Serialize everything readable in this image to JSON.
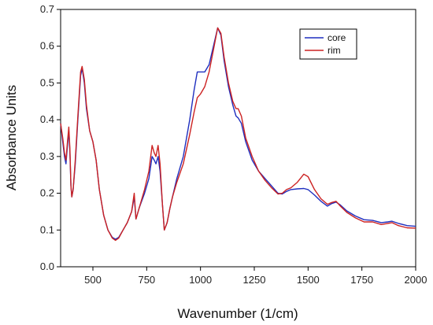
{
  "chart_data": {
    "type": "line",
    "xlabel": "Wavenumber (1/cm)",
    "ylabel": "Absorbance Units",
    "xlim": [
      350,
      2000
    ],
    "ylim": [
      0,
      0.7
    ],
    "x_ticks": [
      500,
      750,
      1000,
      1250,
      1500,
      1750,
      2000
    ],
    "y_ticks": [
      0.0,
      0.1,
      0.2,
      0.3,
      0.4,
      0.5,
      0.6,
      0.7
    ],
    "x_tick_labels": [
      "500",
      "750",
      "1000",
      "1250",
      "1500",
      "1750",
      "2000"
    ],
    "y_tick_labels": [
      "0.0",
      "0.1",
      "0.2",
      "0.3",
      "0.4",
      "0.5",
      "0.6",
      "0.7"
    ],
    "grid": false,
    "legend_position": "top-right",
    "series": [
      {
        "name": "core",
        "color": "#1f2fbf",
        "points": [
          [
            350,
            0.39
          ],
          [
            360,
            0.34
          ],
          [
            368,
            0.3
          ],
          [
            375,
            0.28
          ],
          [
            382,
            0.33
          ],
          [
            388,
            0.37
          ],
          [
            393,
            0.31
          ],
          [
            398,
            0.22
          ],
          [
            402,
            0.19
          ],
          [
            408,
            0.21
          ],
          [
            418,
            0.28
          ],
          [
            430,
            0.4
          ],
          [
            443,
            0.52
          ],
          [
            450,
            0.54
          ],
          [
            460,
            0.5
          ],
          [
            470,
            0.43
          ],
          [
            485,
            0.37
          ],
          [
            500,
            0.34
          ],
          [
            515,
            0.29
          ],
          [
            530,
            0.21
          ],
          [
            550,
            0.14
          ],
          [
            570,
            0.1
          ],
          [
            590,
            0.08
          ],
          [
            605,
            0.075
          ],
          [
            620,
            0.08
          ],
          [
            640,
            0.1
          ],
          [
            660,
            0.12
          ],
          [
            680,
            0.15
          ],
          [
            692,
            0.19
          ],
          [
            700,
            0.13
          ],
          [
            715,
            0.16
          ],
          [
            740,
            0.2
          ],
          [
            760,
            0.24
          ],
          [
            775,
            0.3
          ],
          [
            785,
            0.29
          ],
          [
            793,
            0.28
          ],
          [
            803,
            0.3
          ],
          [
            812,
            0.26
          ],
          [
            823,
            0.17
          ],
          [
            832,
            0.1
          ],
          [
            845,
            0.12
          ],
          [
            858,
            0.16
          ],
          [
            870,
            0.19
          ],
          [
            890,
            0.24
          ],
          [
            920,
            0.3
          ],
          [
            950,
            0.4
          ],
          [
            970,
            0.48
          ],
          [
            985,
            0.53
          ],
          [
            1000,
            0.53
          ],
          [
            1020,
            0.53
          ],
          [
            1040,
            0.55
          ],
          [
            1060,
            0.6
          ],
          [
            1080,
            0.65
          ],
          [
            1095,
            0.63
          ],
          [
            1110,
            0.56
          ],
          [
            1130,
            0.49
          ],
          [
            1150,
            0.44
          ],
          [
            1165,
            0.41
          ],
          [
            1175,
            0.405
          ],
          [
            1190,
            0.39
          ],
          [
            1210,
            0.34
          ],
          [
            1240,
            0.29
          ],
          [
            1270,
            0.26
          ],
          [
            1300,
            0.24
          ],
          [
            1330,
            0.22
          ],
          [
            1360,
            0.2
          ],
          [
            1380,
            0.198
          ],
          [
            1400,
            0.205
          ],
          [
            1420,
            0.21
          ],
          [
            1450,
            0.212
          ],
          [
            1480,
            0.213
          ],
          [
            1500,
            0.21
          ],
          [
            1530,
            0.195
          ],
          [
            1560,
            0.178
          ],
          [
            1590,
            0.165
          ],
          [
            1610,
            0.172
          ],
          [
            1630,
            0.176
          ],
          [
            1650,
            0.168
          ],
          [
            1680,
            0.152
          ],
          [
            1720,
            0.138
          ],
          [
            1760,
            0.128
          ],
          [
            1800,
            0.126
          ],
          [
            1840,
            0.12
          ],
          [
            1870,
            0.122
          ],
          [
            1890,
            0.124
          ],
          [
            1920,
            0.118
          ],
          [
            1960,
            0.112
          ],
          [
            2000,
            0.11
          ]
        ]
      },
      {
        "name": "rim",
        "color": "#cc2222",
        "points": [
          [
            350,
            0.39
          ],
          [
            360,
            0.35
          ],
          [
            368,
            0.31
          ],
          [
            375,
            0.29
          ],
          [
            382,
            0.34
          ],
          [
            388,
            0.38
          ],
          [
            393,
            0.32
          ],
          [
            398,
            0.22
          ],
          [
            402,
            0.19
          ],
          [
            408,
            0.21
          ],
          [
            418,
            0.29
          ],
          [
            430,
            0.41
          ],
          [
            443,
            0.53
          ],
          [
            450,
            0.545
          ],
          [
            460,
            0.51
          ],
          [
            470,
            0.44
          ],
          [
            485,
            0.37
          ],
          [
            500,
            0.34
          ],
          [
            515,
            0.29
          ],
          [
            530,
            0.21
          ],
          [
            550,
            0.14
          ],
          [
            570,
            0.1
          ],
          [
            590,
            0.078
          ],
          [
            605,
            0.072
          ],
          [
            620,
            0.078
          ],
          [
            640,
            0.1
          ],
          [
            660,
            0.12
          ],
          [
            680,
            0.15
          ],
          [
            692,
            0.2
          ],
          [
            700,
            0.13
          ],
          [
            715,
            0.16
          ],
          [
            740,
            0.21
          ],
          [
            760,
            0.26
          ],
          [
            775,
            0.33
          ],
          [
            785,
            0.31
          ],
          [
            793,
            0.3
          ],
          [
            803,
            0.33
          ],
          [
            812,
            0.28
          ],
          [
            823,
            0.17
          ],
          [
            832,
            0.1
          ],
          [
            845,
            0.12
          ],
          [
            858,
            0.16
          ],
          [
            870,
            0.19
          ],
          [
            890,
            0.23
          ],
          [
            920,
            0.28
          ],
          [
            950,
            0.36
          ],
          [
            970,
            0.42
          ],
          [
            985,
            0.46
          ],
          [
            1000,
            0.47
          ],
          [
            1020,
            0.49
          ],
          [
            1040,
            0.53
          ],
          [
            1060,
            0.59
          ],
          [
            1080,
            0.65
          ],
          [
            1095,
            0.635
          ],
          [
            1110,
            0.57
          ],
          [
            1130,
            0.5
          ],
          [
            1150,
            0.45
          ],
          [
            1165,
            0.43
          ],
          [
            1175,
            0.43
          ],
          [
            1190,
            0.41
          ],
          [
            1210,
            0.35
          ],
          [
            1240,
            0.3
          ],
          [
            1270,
            0.26
          ],
          [
            1300,
            0.235
          ],
          [
            1330,
            0.215
          ],
          [
            1360,
            0.198
          ],
          [
            1380,
            0.2
          ],
          [
            1400,
            0.21
          ],
          [
            1420,
            0.215
          ],
          [
            1450,
            0.23
          ],
          [
            1480,
            0.252
          ],
          [
            1500,
            0.245
          ],
          [
            1530,
            0.21
          ],
          [
            1560,
            0.185
          ],
          [
            1590,
            0.17
          ],
          [
            1610,
            0.175
          ],
          [
            1630,
            0.178
          ],
          [
            1650,
            0.165
          ],
          [
            1680,
            0.148
          ],
          [
            1720,
            0.133
          ],
          [
            1760,
            0.122
          ],
          [
            1800,
            0.122
          ],
          [
            1840,
            0.115
          ],
          [
            1870,
            0.118
          ],
          [
            1890,
            0.12
          ],
          [
            1920,
            0.112
          ],
          [
            1960,
            0.106
          ],
          [
            2000,
            0.105
          ]
        ]
      }
    ]
  }
}
